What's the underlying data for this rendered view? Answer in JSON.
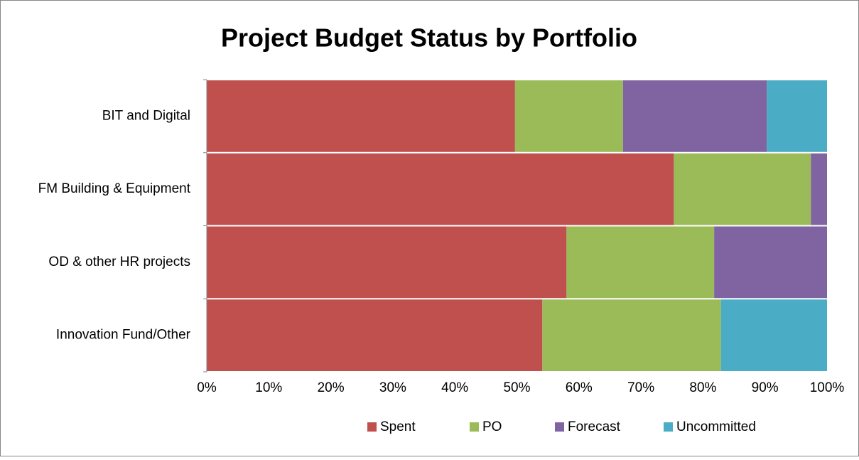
{
  "chart_data": {
    "type": "stacked_bar_horizontal",
    "title": "Project Budget Status by Portfolio",
    "categories": [
      "BIT and Digital",
      "FM Building & Equipment",
      "OD & other HR projects",
      "Innovation Fund/Other"
    ],
    "series": [
      {
        "name": "Spent",
        "color": "#c0504d",
        "values": [
          49.7,
          75.3,
          58.0,
          54.1
        ]
      },
      {
        "name": "PO",
        "color": "#9bbb59",
        "values": [
          17.4,
          22.1,
          23.8,
          28.8
        ]
      },
      {
        "name": "Forecast",
        "color": "#8064a2",
        "values": [
          23.2,
          2.6,
          18.2,
          0
        ]
      },
      {
        "name": "Uncommitted",
        "color": "#4bacc6",
        "values": [
          9.7,
          0,
          0,
          17.1
        ]
      }
    ],
    "xlim": [
      0,
      100
    ],
    "xticks": [
      {
        "value": 0,
        "label": "0%"
      },
      {
        "value": 10,
        "label": "10%"
      },
      {
        "value": 20,
        "label": "20%"
      },
      {
        "value": 30,
        "label": "30%"
      },
      {
        "value": 40,
        "label": "40%"
      },
      {
        "value": 50,
        "label": "50%"
      },
      {
        "value": 60,
        "label": "60%"
      },
      {
        "value": 70,
        "label": "70%"
      },
      {
        "value": 80,
        "label": "80%"
      },
      {
        "value": 90,
        "label": "90%"
      },
      {
        "value": 100,
        "label": "100%"
      }
    ],
    "legend": "bottom"
  }
}
